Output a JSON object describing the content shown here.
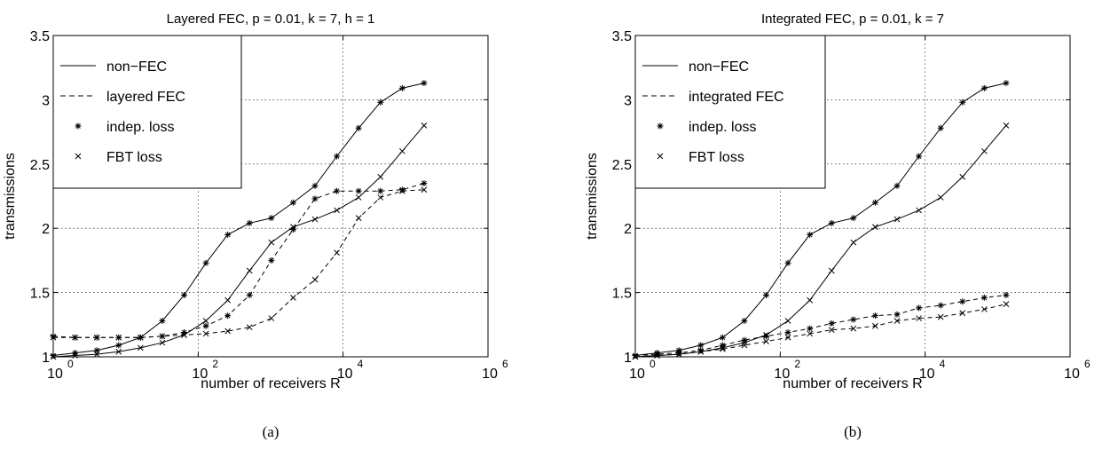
{
  "chart_data": [
    {
      "type": "line",
      "panel_label": "(a)",
      "title": "Layered FEC, p = 0.01, k = 7, h = 1",
      "xlabel": "number of receivers R",
      "ylabel": "transmissions",
      "xscale": "log",
      "xlim": [
        1,
        1000000
      ],
      "ylim": [
        1,
        3.5
      ],
      "xticks": [
        {
          "base": "10",
          "exp": "0"
        },
        {
          "base": "10",
          "exp": "2"
        },
        {
          "base": "10",
          "exp": "4"
        },
        {
          "base": "10",
          "exp": "6"
        }
      ],
      "yticks": [
        "1",
        "1.5",
        "2",
        "2.5",
        "3",
        "3.5"
      ],
      "grid": true,
      "legend_position": "top-left",
      "legend": [
        {
          "label": "non−FEC",
          "kind": "solid-line"
        },
        {
          "label": "layered FEC",
          "kind": "dashed-line"
        },
        {
          "label": "indep. loss",
          "kind": "star-marker"
        },
        {
          "label": "FBT loss",
          "kind": "x-marker"
        }
      ],
      "x": [
        1,
        2,
        4,
        8,
        16,
        32,
        64,
        128,
        256,
        512,
        1024,
        2048,
        4096,
        8192,
        16384,
        32768,
        65536,
        131072
      ],
      "series": [
        {
          "name": "non−FEC, indep. loss",
          "style": "solid",
          "marker": "star",
          "values": [
            1.01,
            1.03,
            1.05,
            1.09,
            1.15,
            1.28,
            1.48,
            1.73,
            1.95,
            2.04,
            2.08,
            2.2,
            2.33,
            2.56,
            2.78,
            2.98,
            3.09,
            3.13
          ]
        },
        {
          "name": "non−FEC, FBT loss",
          "style": "solid",
          "marker": "x",
          "values": [
            1.0,
            1.01,
            1.02,
            1.04,
            1.07,
            1.11,
            1.17,
            1.28,
            1.44,
            1.67,
            1.89,
            2.01,
            2.07,
            2.14,
            2.24,
            2.4,
            2.6,
            2.8
          ]
        },
        {
          "name": "layered FEC, indep. loss",
          "style": "dashed",
          "marker": "star",
          "values": [
            1.16,
            1.15,
            1.15,
            1.15,
            1.15,
            1.16,
            1.19,
            1.24,
            1.32,
            1.48,
            1.75,
            1.99,
            2.23,
            2.29,
            2.29,
            2.29,
            2.3,
            2.35
          ]
        },
        {
          "name": "layered FEC, FBT loss",
          "style": "dashed",
          "marker": "x",
          "values": [
            1.15,
            1.15,
            1.15,
            1.15,
            1.15,
            1.16,
            1.17,
            1.18,
            1.2,
            1.23,
            1.3,
            1.46,
            1.6,
            1.81,
            2.08,
            2.24,
            2.29,
            2.3
          ]
        }
      ]
    },
    {
      "type": "line",
      "panel_label": "(b)",
      "title": "Integrated FEC, p = 0.01, k = 7",
      "xlabel": "number of receivers R",
      "ylabel": "transmissions",
      "xscale": "log",
      "xlim": [
        1,
        1000000
      ],
      "ylim": [
        1,
        3.5
      ],
      "xticks": [
        {
          "base": "10",
          "exp": "0"
        },
        {
          "base": "10",
          "exp": "2"
        },
        {
          "base": "10",
          "exp": "4"
        },
        {
          "base": "10",
          "exp": "6"
        }
      ],
      "yticks": [
        "1",
        "1.5",
        "2",
        "2.5",
        "3",
        "3.5"
      ],
      "grid": true,
      "legend_position": "top-left",
      "legend": [
        {
          "label": "non−FEC",
          "kind": "solid-line"
        },
        {
          "label": "integrated FEC",
          "kind": "dashed-line"
        },
        {
          "label": "indep. loss",
          "kind": "star-marker"
        },
        {
          "label": "FBT loss",
          "kind": "x-marker"
        }
      ],
      "x": [
        1,
        2,
        4,
        8,
        16,
        32,
        64,
        128,
        256,
        512,
        1024,
        2048,
        4096,
        8192,
        16384,
        32768,
        65536,
        131072
      ],
      "series": [
        {
          "name": "non−FEC, indep. loss",
          "style": "solid",
          "marker": "star",
          "values": [
            1.01,
            1.03,
            1.05,
            1.09,
            1.15,
            1.28,
            1.48,
            1.73,
            1.95,
            2.04,
            2.08,
            2.2,
            2.33,
            2.56,
            2.78,
            2.98,
            3.09,
            3.13
          ]
        },
        {
          "name": "non−FEC, FBT loss",
          "style": "solid",
          "marker": "x",
          "values": [
            1.0,
            1.01,
            1.02,
            1.04,
            1.07,
            1.11,
            1.17,
            1.28,
            1.44,
            1.67,
            1.89,
            2.01,
            2.07,
            2.14,
            2.24,
            2.4,
            2.6,
            2.8
          ]
        },
        {
          "name": "integrated FEC, indep. loss",
          "style": "dashed",
          "marker": "star",
          "values": [
            1.01,
            1.02,
            1.03,
            1.05,
            1.09,
            1.13,
            1.16,
            1.19,
            1.22,
            1.26,
            1.29,
            1.32,
            1.33,
            1.38,
            1.4,
            1.43,
            1.46,
            1.48
          ]
        },
        {
          "name": "integrated FEC, FBT loss",
          "style": "dashed",
          "marker": "x",
          "values": [
            1.0,
            1.01,
            1.02,
            1.04,
            1.06,
            1.09,
            1.12,
            1.15,
            1.18,
            1.21,
            1.22,
            1.24,
            1.28,
            1.3,
            1.31,
            1.34,
            1.37,
            1.41
          ]
        }
      ]
    }
  ]
}
